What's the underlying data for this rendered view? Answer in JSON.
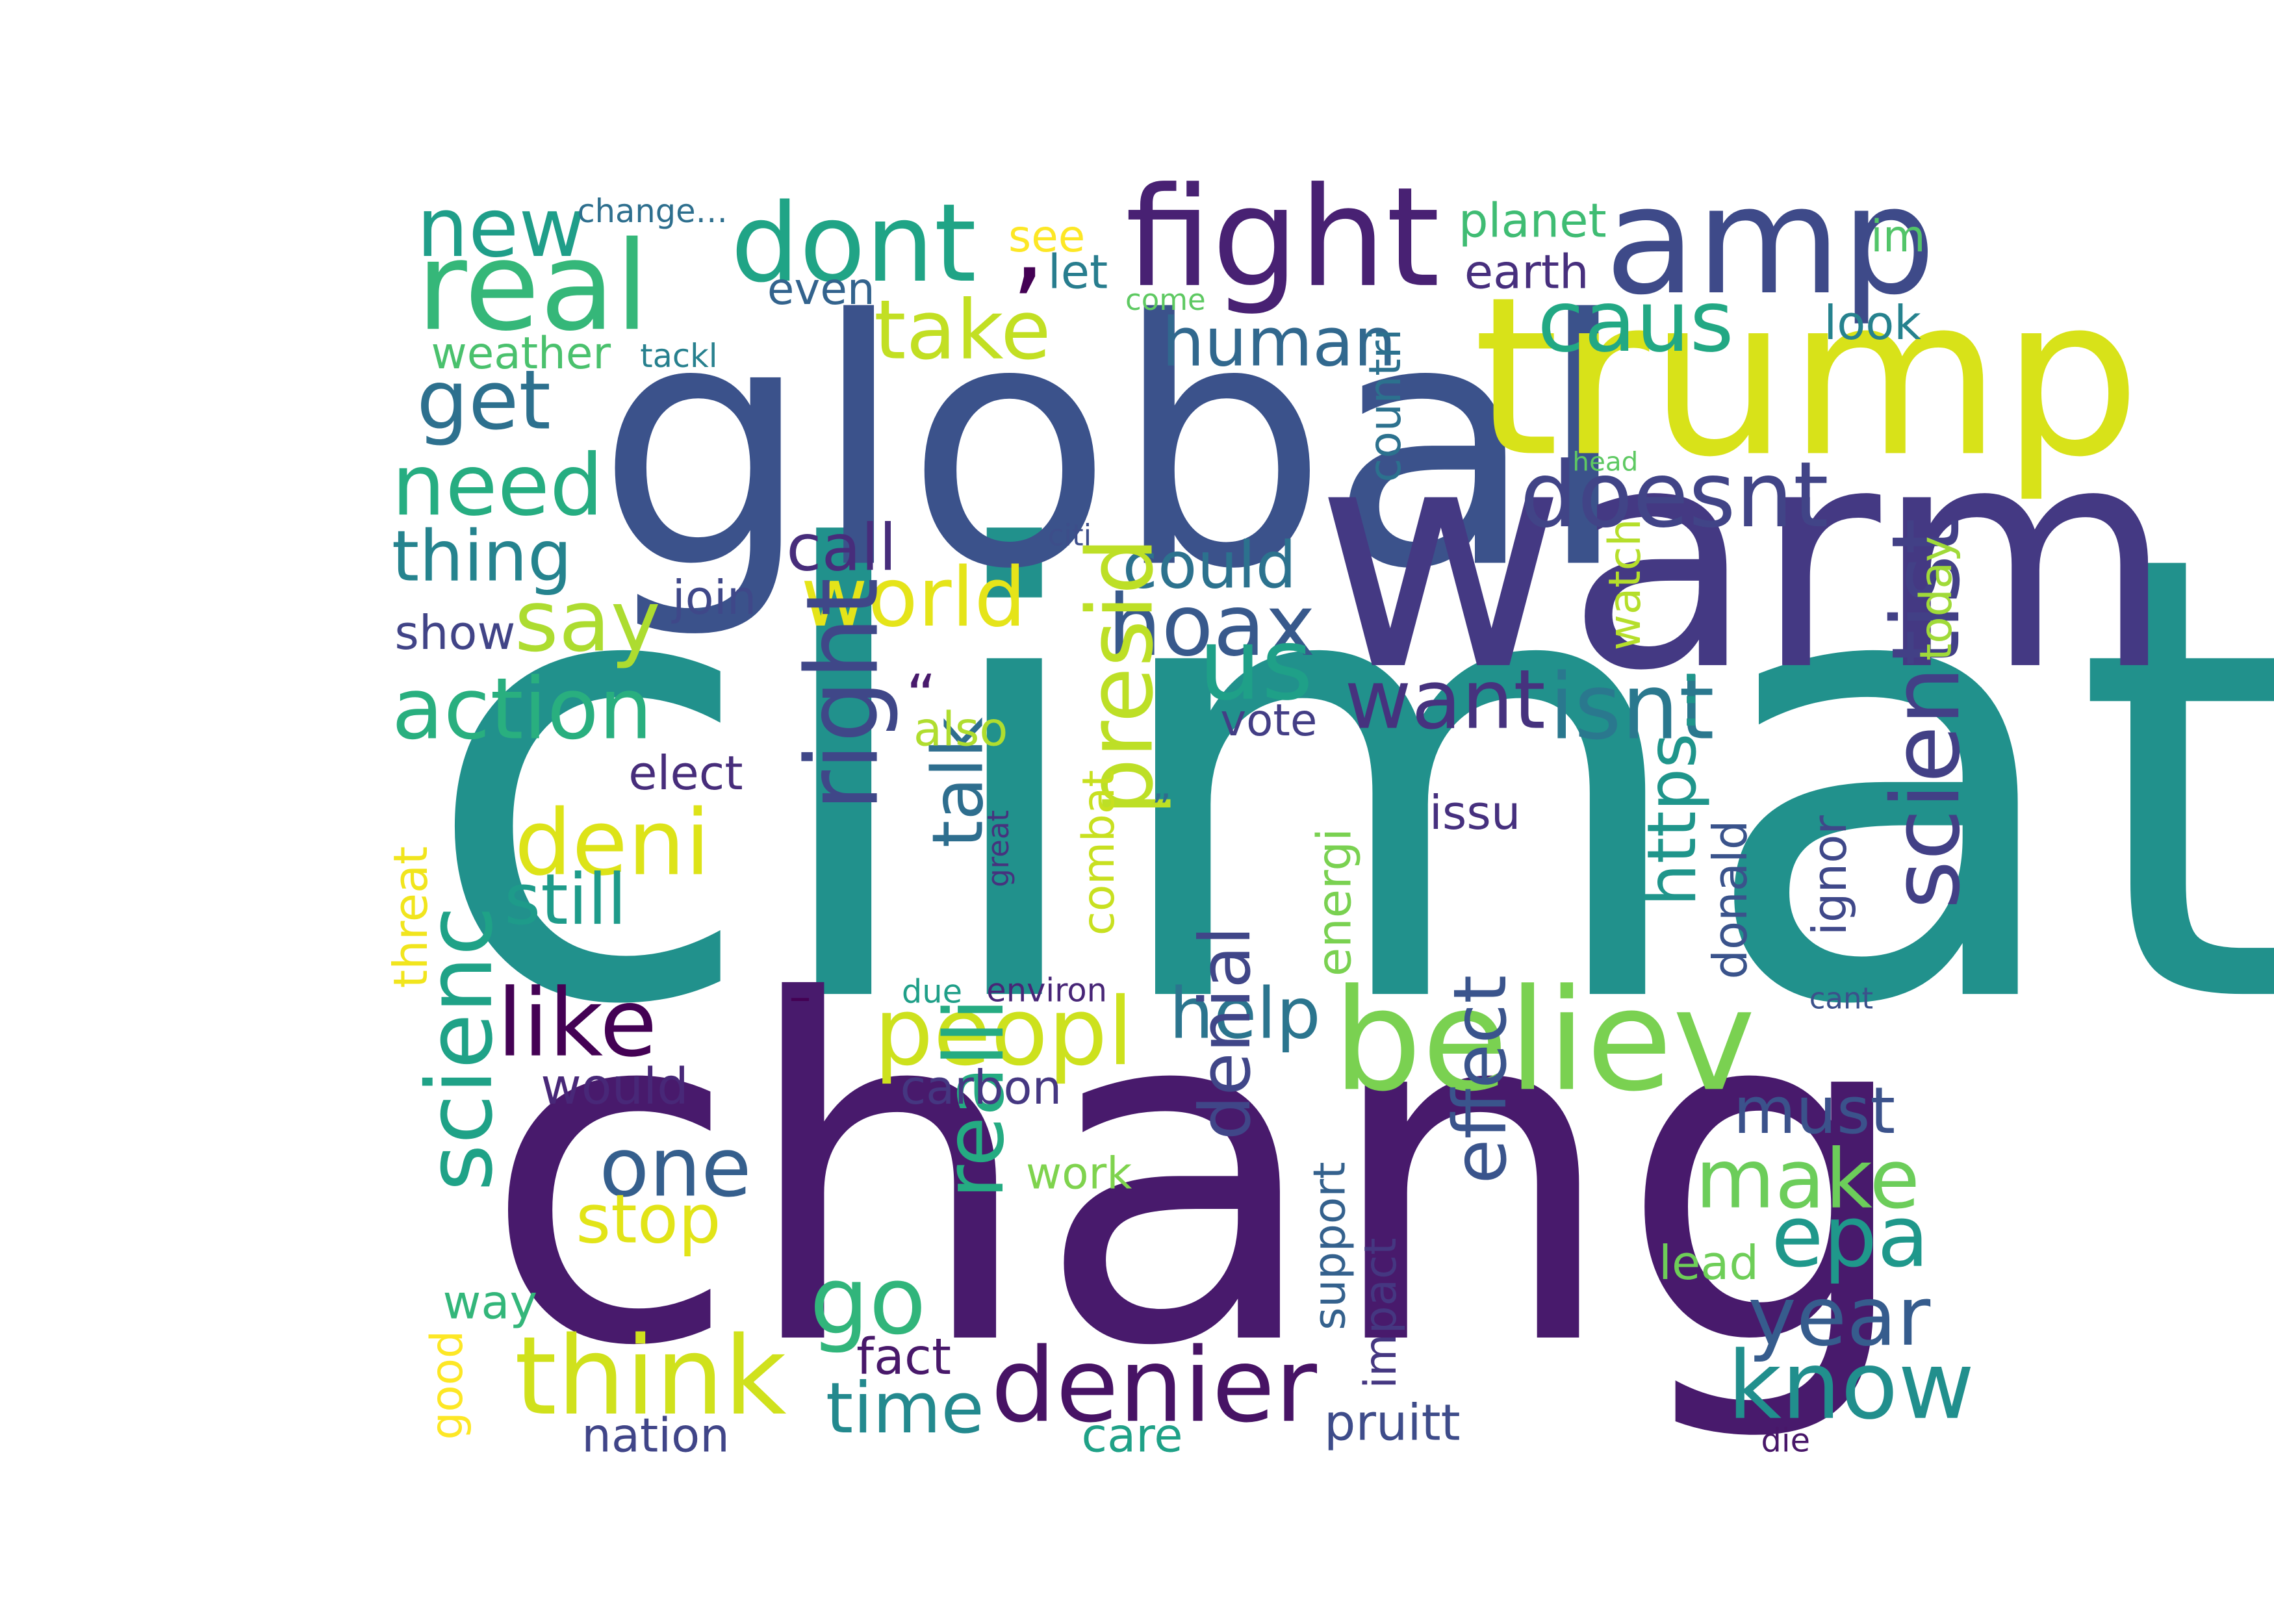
{
  "words": [
    {
      "text": "climat",
      "color": "#21918c"
    },
    {
      "text": "chang",
      "color": "#481a6c"
    },
    {
      "text": "global",
      "color": "#3b528b"
    },
    {
      "text": "warm",
      "color": "#443983"
    },
    {
      "text": "trump",
      "color": "#d8e219"
    },
    {
      "text": "amp",
      "color": "#3e4a89"
    },
    {
      "text": "fight",
      "color": "#482173"
    },
    {
      "text": "real",
      "color": "#35b779"
    },
    {
      "text": "dont",
      "color": "#20a486"
    },
    {
      "text": ",",
      "color": "#440154"
    },
    {
      "text": "believ",
      "color": "#7ad151"
    },
    {
      "text": "new",
      "color": "#1f9e89"
    },
    {
      "text": "caus",
      "color": "#22a884"
    },
    {
      "text": "take",
      "color": "#c2df23"
    },
    {
      "text": "human",
      "color": "#31688e"
    },
    {
      "text": "get",
      "color": "#2d708e"
    },
    {
      "text": "need",
      "color": "#26ad81"
    },
    {
      "text": "doesnt",
      "color": "#414487"
    },
    {
      "text": "thing",
      "color": "#25838e"
    },
    {
      "text": "call",
      "color": "#472d7b"
    },
    {
      "text": "could",
      "color": "#2c728e"
    },
    {
      "text": "say",
      "color": "#addc30"
    },
    {
      "text": "world",
      "color": "#e5e419"
    },
    {
      "text": "hoax",
      "color": "#38598c"
    },
    {
      "text": "us",
      "color": "#1fa088"
    },
    {
      "text": "action",
      "color": "#29af7f"
    },
    {
      "text": "want",
      "color": "#46327e"
    },
    {
      "text": "isnt",
      "color": "#2a788e"
    },
    {
      "text": "deni",
      "color": "#dde318"
    },
    {
      "text": "right",
      "color": "#3f4788"
    },
    {
      "text": "presid",
      "color": "#bddf26"
    },
    {
      "text": "scientist",
      "color": "#424086"
    },
    {
      "text": "still",
      "color": "#1e9b8a"
    },
    {
      "text": "talk",
      "color": "#2e6e8e"
    },
    {
      "text": "https…",
      "color": "#1f958b"
    },
    {
      "text": "like",
      "color": "#440154"
    },
    {
      "text": "peopl",
      "color": "#cde11d"
    },
    {
      "text": "help",
      "color": "#2b758e"
    },
    {
      "text": "scienc",
      "color": "#1fa287"
    },
    {
      "text": "one",
      "color": "#355f8d"
    },
    {
      "text": "make",
      "color": "#6ccd5a"
    },
    {
      "text": "epa",
      "color": "#1f988b"
    },
    {
      "text": "stop",
      "color": "#e2e418"
    },
    {
      "text": "go",
      "color": "#31b57b"
    },
    {
      "text": "think",
      "color": "#d0e11c"
    },
    {
      "text": "denier",
      "color": "#471365"
    },
    {
      "text": "year",
      "color": "#365c8d"
    },
    {
      "text": "know",
      "color": "#218f8d"
    },
    {
      "text": "time",
      "color": "#23898e"
    },
    {
      "text": "realli",
      "color": "#25ab82"
    },
    {
      "text": "denial",
      "color": "#404688"
    },
    {
      "text": "effect",
      "color": "#3a548c"
    },
    {
      "text": "must",
      "color": "#3b528b"
    },
    {
      "text": "would",
      "color": "#482878"
    },
    {
      "text": "carbon",
      "color": "#453781"
    },
    {
      "text": "work",
      "color": "#7fd34e"
    },
    {
      "text": "fact",
      "color": "#48186a"
    },
    {
      "text": "pruitt",
      "color": "#3e4c8a"
    },
    {
      "text": "nation",
      "color": "#404588"
    },
    {
      "text": "care",
      "color": "#1fa187"
    },
    {
      "text": "planet",
      "color": "#3fbc73"
    },
    {
      "text": "earth",
      "color": "#472f7d"
    },
    {
      "text": "see",
      "color": "#fde725"
    },
    {
      "text": "let",
      "color": "#287d8e"
    },
    {
      "text": "even",
      "color": "#33638d"
    },
    {
      "text": "change…",
      "color": "#2e6f8e"
    },
    {
      "text": "weather",
      "color": "#4ac16d"
    },
    {
      "text": "tackl",
      "color": "#27808e"
    },
    {
      "text": "come",
      "color": "#5ec962"
    },
    {
      "text": "countri",
      "color": "#2c718e"
    },
    {
      "text": "im",
      "color": "#52c569"
    },
    {
      "text": "look",
      "color": "#26828e"
    },
    {
      "text": "head",
      "color": "#5ec962"
    },
    {
      "text": "citi",
      "color": "#3d4e8a"
    },
    {
      "text": "join",
      "color": "#3f4889"
    },
    {
      "text": "show",
      "color": "#414487"
    },
    {
      "text": "watch",
      "color": "#b5de2b"
    },
    {
      "text": "today",
      "color": "#a0da39"
    },
    {
      "text": "also",
      "color": "#b0dd2f"
    },
    {
      "text": "vote",
      "color": "#433e85"
    },
    {
      "text": "elect",
      "color": "#472d7b"
    },
    {
      "text": "“",
      "color": "#481a6c"
    },
    {
      "text": "combat",
      "color": "#c8e020"
    },
    {
      "text": "issu",
      "color": "#46307e"
    },
    {
      "text": "energi",
      "color": "#7ad151"
    },
    {
      "text": "great",
      "color": "#46337e"
    },
    {
      "text": "”",
      "color": "#2f6c8e"
    },
    {
      "text": "donald",
      "color": "#3a538b"
    },
    {
      "text": "ignor",
      "color": "#3f4889"
    },
    {
      "text": "threat",
      "color": "#f1e51d"
    },
    {
      "text": "due",
      "color": "#1f9f88"
    },
    {
      "text": "environ",
      "color": "#482677"
    },
    {
      "text": "cant",
      "color": "#3b518b"
    },
    {
      "text": "–",
      "color": "#440154"
    },
    {
      "text": "way",
      "color": "#33b67a"
    },
    {
      "text": "support",
      "color": "#34618d"
    },
    {
      "text": "impact",
      "color": "#453781"
    },
    {
      "text": "lead",
      "color": "#6ece58"
    },
    {
      "text": "good",
      "color": "#fde725"
    },
    {
      "text": "die",
      "color": "#481769"
    }
  ]
}
